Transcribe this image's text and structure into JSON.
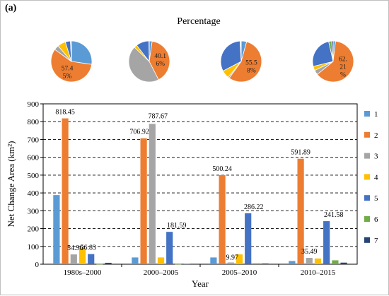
{
  "panel_label": "(a)",
  "pie_title": "Percentage",
  "chart_data": [
    {
      "type": "pie",
      "title": "Percentage",
      "pies": [
        {
          "period": "1980s–2000",
          "series": [
            1,
            2,
            3,
            4,
            5,
            6,
            7
          ],
          "values": [
            27.2,
            57.45,
            3.8,
            6.4,
            4.0,
            0.2,
            0.6
          ],
          "label": "57.4\n5%",
          "label_series": "2"
        },
        {
          "period": "2000–2005",
          "series": [
            1,
            2,
            3,
            4,
            5,
            6,
            7
          ],
          "values": [
            2.3,
            40.16,
            44.75,
            2.3,
            10.3,
            0.1,
            0.1
          ],
          "label": "40.1\n6%",
          "label_series": "2"
        },
        {
          "period": "2005–2010",
          "series": [
            1,
            2,
            3,
            4,
            5,
            6,
            7
          ],
          "values": [
            4.3,
            55.58,
            1.1,
            6.3,
            31.8,
            0.5,
            0.4
          ],
          "label": "55.5\n8%",
          "label_series": "2"
        },
        {
          "period": "2010–2015",
          "series": [
            1,
            2,
            3,
            4,
            5,
            6,
            7
          ],
          "values": [
            1.9,
            62.21,
            3.7,
            3.3,
            25.4,
            2.3,
            1.2
          ],
          "label": "62.\n21\n%",
          "label_series": "2"
        }
      ]
    },
    {
      "type": "bar",
      "categories": [
        "1980s–2000",
        "2000–2005",
        "2005–2010",
        "2010–2015"
      ],
      "series": [
        {
          "name": "1",
          "values": [
            388,
            38,
            38,
            18
          ]
        },
        {
          "name": "2",
          "values": [
            818.45,
            706.92,
            500.24,
            591.89
          ]
        },
        {
          "name": "3",
          "values": [
            54.96,
            787.67,
            9.97,
            35.49
          ]
        },
        {
          "name": "4",
          "values": [
            91.5,
            38,
            55,
            32
          ]
        },
        {
          "name": "5",
          "values": [
            56.83,
            181.59,
            286.22,
            241.58
          ]
        },
        {
          "name": "6",
          "values": [
            1,
            1,
            5,
            22
          ]
        },
        {
          "name": "7",
          "values": [
            8,
            2,
            4,
            9
          ]
        }
      ],
      "data_labels": [
        {
          "category": "1980s–2000",
          "series": "2",
          "text": "818.45"
        },
        {
          "category": "1980s–2000",
          "series": "3",
          "text": "54.96"
        },
        {
          "category": "1980s–2000",
          "series": "5",
          "text": "56.83"
        },
        {
          "category": "2000–2005",
          "series": "2",
          "text": "706.92"
        },
        {
          "category": "2000–2005",
          "series": "3",
          "text": "787.67"
        },
        {
          "category": "2000–2005",
          "series": "5",
          "text": "181.59"
        },
        {
          "category": "2005–2010",
          "series": "2",
          "text": "500.24"
        },
        {
          "category": "2005–2010",
          "series": "3",
          "text": "9.97"
        },
        {
          "category": "2005–2010",
          "series": "5",
          "text": "286.22"
        },
        {
          "category": "2010–2015",
          "series": "2",
          "text": "591.89"
        },
        {
          "category": "2010–2015",
          "series": "3",
          "text": "35.49"
        },
        {
          "category": "2010–2015",
          "series": "5",
          "text": "241.58"
        }
      ],
      "xlabel": "Year",
      "ylabel": "Net Change Area (km²)",
      "ylim": [
        0,
        900
      ],
      "yticks": [
        0,
        100,
        200,
        300,
        400,
        500,
        600,
        700,
        800,
        900
      ],
      "grid": "horizontal dashed",
      "legend_position": "right"
    }
  ],
  "colors": {
    "1": "#5b9bd5",
    "2": "#ed7d31",
    "3": "#a5a5a5",
    "4": "#ffc000",
    "5": "#4472c4",
    "6": "#70ad47",
    "7": "#264478"
  }
}
